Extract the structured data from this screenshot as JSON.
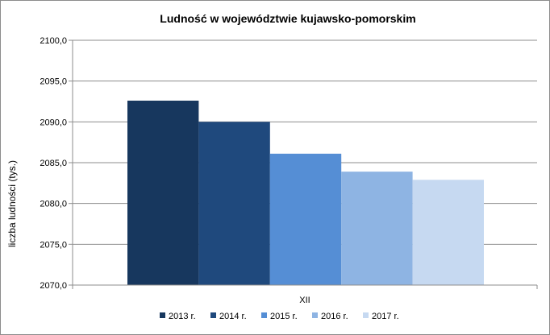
{
  "chart_data": {
    "type": "bar",
    "title": "Ludność w województwie kujawsko-pomorskim",
    "ylabel": "liczba ludności (tys.)",
    "xlabel": "",
    "categories": [
      "XII"
    ],
    "ylim": [
      2070,
      2100
    ],
    "ytick_step": 5,
    "ytick_labels": [
      "2070,0",
      "2075,0",
      "2080,0",
      "2085,0",
      "2090,0",
      "2095,0",
      "2100,0"
    ],
    "grid": true,
    "legend_position": "bottom",
    "series": [
      {
        "name": "2013 r.",
        "values": [
          2092.6
        ],
        "color": "#17375e"
      },
      {
        "name": "2014 r.",
        "values": [
          2090.0
        ],
        "color": "#1f497d"
      },
      {
        "name": "2015 r.",
        "values": [
          2086.1
        ],
        "color": "#558ed5"
      },
      {
        "name": "2016 r.",
        "values": [
          2083.9
        ],
        "color": "#8eb4e3"
      },
      {
        "name": "2017 r.",
        "values": [
          2082.9
        ],
        "color": "#c6d9f1"
      }
    ]
  }
}
